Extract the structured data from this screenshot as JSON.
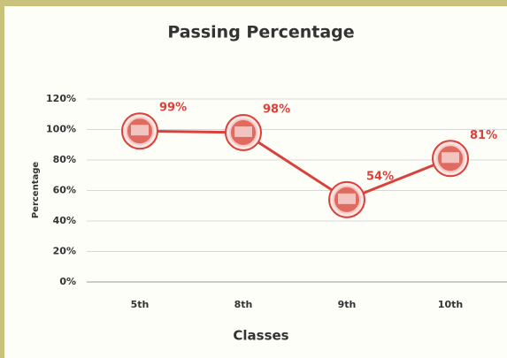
{
  "chart_data": {
    "type": "line",
    "title": "Passing Percentage",
    "x_label": "Classes",
    "y_label": "Percentage",
    "categories": [
      "5th",
      "8th",
      "9th",
      "10th"
    ],
    "series": [
      {
        "name": "Passing Percentage",
        "color": "#d9413a",
        "values": [
          99,
          98,
          54,
          81
        ],
        "value_labels": [
          "99%",
          "98%",
          "54%",
          "81%"
        ]
      }
    ],
    "ylim": [
      0,
      120
    ],
    "yticks": [
      {
        "value": 0,
        "label": "0%"
      },
      {
        "value": 20,
        "label": "20%"
      },
      {
        "value": 40,
        "label": "40%"
      },
      {
        "value": 60,
        "label": "60%"
      },
      {
        "value": 80,
        "label": "80%"
      },
      {
        "value": 100,
        "label": "100%"
      },
      {
        "value": 120,
        "label": "120%"
      }
    ],
    "grid": true
  }
}
